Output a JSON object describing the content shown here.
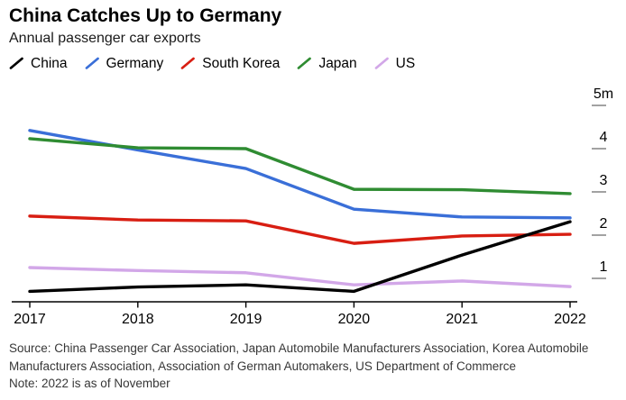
{
  "header": {
    "title": "China Catches Up to Germany",
    "subtitle": "Annual passenger car exports"
  },
  "chart_data": {
    "type": "line",
    "x": [
      2017,
      2018,
      2019,
      2020,
      2021,
      2022
    ],
    "series": [
      {
        "name": "China",
        "color": "#000000",
        "values": [
          0.7,
          0.8,
          0.85,
          0.7,
          1.54,
          2.31
        ]
      },
      {
        "name": "Germany",
        "color": "#3a6fd8",
        "values": [
          4.42,
          3.97,
          3.54,
          2.6,
          2.42,
          2.4
        ]
      },
      {
        "name": "South Korea",
        "color": "#d81e12",
        "values": [
          2.44,
          2.35,
          2.33,
          1.81,
          1.98,
          2.02
        ]
      },
      {
        "name": "Japan",
        "color": "#2f8c32",
        "values": [
          4.23,
          4.02,
          4.0,
          3.06,
          3.05,
          2.96
        ]
      },
      {
        "name": "US",
        "color": "#d2a7e8",
        "values": [
          1.25,
          1.18,
          1.13,
          0.85,
          0.94,
          0.81
        ]
      }
    ],
    "y_ticks": [
      {
        "label": "5m",
        "value": 5
      },
      {
        "label": "4",
        "value": 4
      },
      {
        "label": "3",
        "value": 3
      },
      {
        "label": "2",
        "value": 2
      },
      {
        "label": "1",
        "value": 1
      }
    ],
    "x_tick_labels": [
      "2017",
      "2018",
      "2019",
      "2020",
      "2021",
      "2022"
    ],
    "title": "China Catches Up to Germany",
    "subtitle": "Annual passenger car exports",
    "ylabel": "",
    "xlabel": "",
    "ylim": [
      0.46,
      5.2
    ],
    "grid": false,
    "legend_position": "top",
    "y_axis_side": "right",
    "draw_order": [
      "US",
      "Germany",
      "South Korea",
      "Japan",
      "China"
    ]
  },
  "footer": {
    "source": "Source: China Passenger Car Association, Japan Automobile Manufacturers Association, Korea Automobile Manufacturers Association, Association of German Automakers, US Department of Commerce",
    "note": "Note: 2022 is as of November"
  }
}
